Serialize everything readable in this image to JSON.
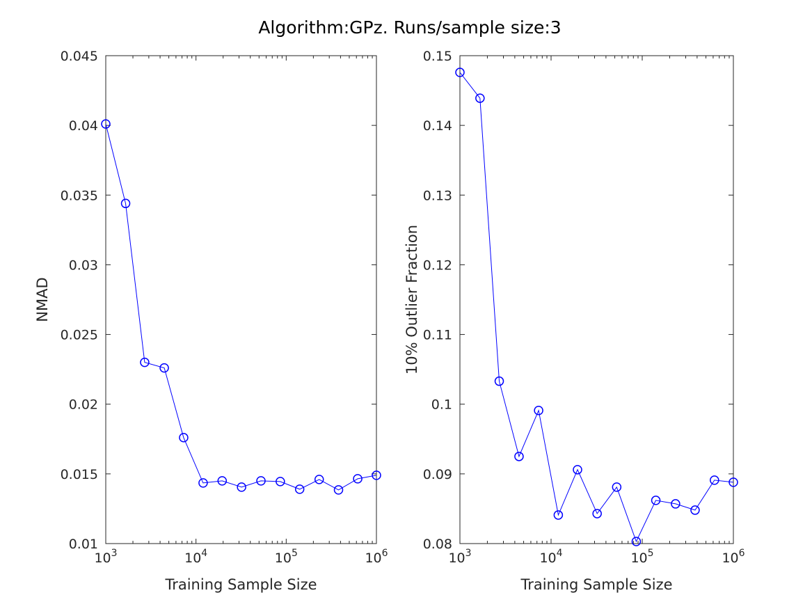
{
  "figure": {
    "title": "Algorithm:GPz. Runs/sample size:3"
  },
  "chart_data": [
    {
      "type": "line",
      "title": "",
      "xlabel": "Training Sample Size",
      "ylabel": "NMAD",
      "xscale": "log",
      "xlim": [
        1000,
        1000000
      ],
      "ylim": [
        0.01,
        0.045
      ],
      "grid": false,
      "x_tick_labels": [
        {
          "base": "10",
          "exp": "3"
        },
        {
          "base": "10",
          "exp": "4"
        },
        {
          "base": "10",
          "exp": "5"
        },
        {
          "base": "10",
          "exp": "6"
        }
      ],
      "y_ticks": [
        0.01,
        0.015,
        0.02,
        0.025,
        0.03,
        0.035,
        0.04,
        0.045
      ],
      "y_tick_labels": [
        "0.01",
        "0.015",
        "0.02",
        "0.025",
        "0.03",
        "0.035",
        "0.04",
        "0.045"
      ],
      "color": "#0000ff",
      "marker": "circle",
      "series": [
        {
          "x": [
            1000,
            1660,
            2700,
            4450,
            7300,
            12000,
            19500,
            32000,
            52500,
            86000,
            141000,
            232000,
            380000,
            620000,
            1000000
          ],
          "y": [
            0.0401,
            0.0344,
            0.023,
            0.0226,
            0.0176,
            0.01435,
            0.0145,
            0.01405,
            0.0145,
            0.01445,
            0.0139,
            0.0146,
            0.01385,
            0.01465,
            0.0149
          ]
        }
      ]
    },
    {
      "type": "line",
      "title": "",
      "xlabel": "Training Sample Size",
      "ylabel": "10% Outlier Fraction",
      "xscale": "log",
      "xlim": [
        1000,
        1000000
      ],
      "ylim": [
        0.08,
        0.15
      ],
      "grid": false,
      "x_tick_labels": [
        {
          "base": "10",
          "exp": "3"
        },
        {
          "base": "10",
          "exp": "4"
        },
        {
          "base": "10",
          "exp": "5"
        },
        {
          "base": "10",
          "exp": "6"
        }
      ],
      "y_ticks": [
        0.08,
        0.09,
        0.1,
        0.11,
        0.12,
        0.13,
        0.14,
        0.15
      ],
      "y_tick_labels": [
        "0.08",
        "0.09",
        "0.1",
        "0.11",
        "0.12",
        "0.13",
        "0.14",
        "0.15"
      ],
      "color": "#0000ff",
      "marker": "circle",
      "series": [
        {
          "x": [
            1000,
            1660,
            2700,
            4450,
            7300,
            12000,
            19500,
            32000,
            52500,
            86000,
            141000,
            232000,
            380000,
            620000,
            1000000
          ],
          "y": [
            0.1476,
            0.1439,
            0.1033,
            0.0925,
            0.0991,
            0.0841,
            0.0906,
            0.0843,
            0.0881,
            0.0803,
            0.0862,
            0.0857,
            0.0848,
            0.0891,
            0.0888
          ]
        }
      ]
    }
  ]
}
